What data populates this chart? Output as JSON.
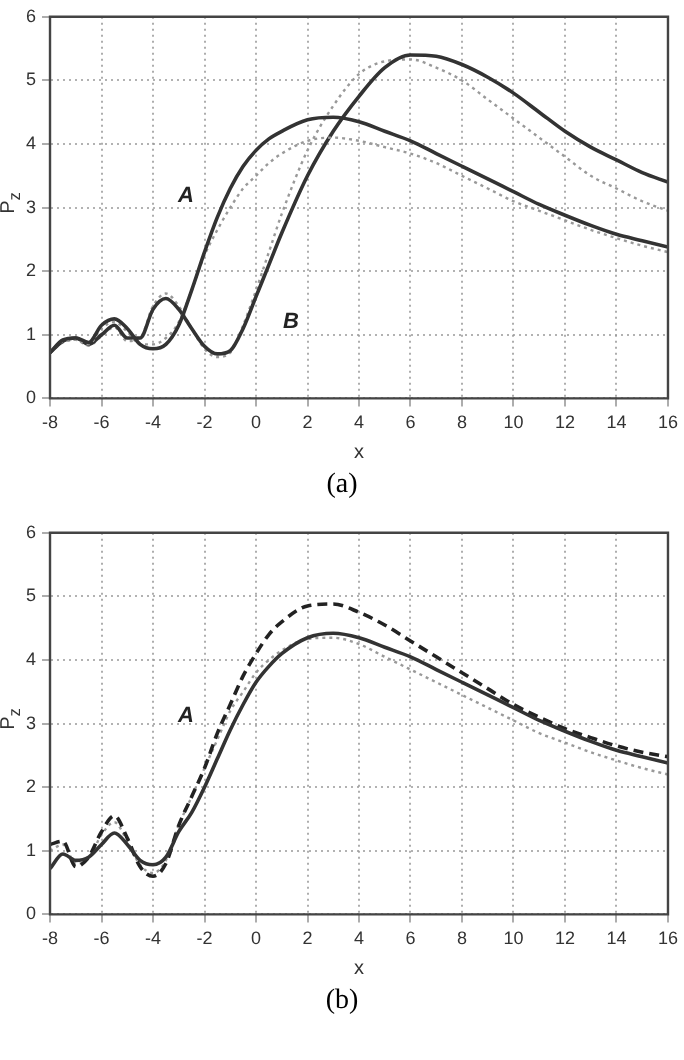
{
  "chart_data": [
    {
      "type": "line",
      "xlabel": "x",
      "ylabel": "P$_{z}$",
      "xlim": [
        -8,
        16
      ],
      "xticks": [
        -8,
        -6,
        -4,
        -2,
        0,
        2,
        4,
        6,
        8,
        10,
        12,
        14,
        16
      ],
      "ylim": [
        0,
        6
      ],
      "yticks": [
        0,
        1,
        2,
        3,
        4,
        5,
        6
      ],
      "grid": true,
      "legend": false,
      "x": [
        -8,
        -7.5,
        -7,
        -6.5,
        -6,
        -5.5,
        -5,
        -4.5,
        -4,
        -3.5,
        -3,
        -2.5,
        -2,
        -1.5,
        -1,
        -0.5,
        0,
        0.5,
        1,
        2,
        3,
        4,
        5,
        6,
        7,
        8,
        9,
        10,
        11,
        12,
        13,
        14,
        15,
        16
      ],
      "series": [
        {
          "color": "#333333",
          "line_style": "solid",
          "values": [
            0.72,
            0.92,
            0.95,
            0.88,
            1.15,
            1.25,
            1.1,
            0.85,
            0.78,
            0.85,
            1.15,
            1.7,
            2.3,
            2.85,
            3.3,
            3.65,
            3.9,
            4.08,
            4.2,
            4.38,
            4.42,
            4.35,
            4.2,
            4.05,
            3.85,
            3.65,
            3.45,
            3.25,
            3.05,
            2.88,
            2.72,
            2.58,
            2.48,
            2.38
          ]
        },
        {
          "color": "#999999",
          "line_style": "dotted",
          "values": [
            0.72,
            0.9,
            0.92,
            0.85,
            1.1,
            1.2,
            1.05,
            0.85,
            0.85,
            0.95,
            1.2,
            1.7,
            2.25,
            2.65,
            3.0,
            3.3,
            3.5,
            3.7,
            3.85,
            4.05,
            4.1,
            4.05,
            3.95,
            3.85,
            3.7,
            3.5,
            3.3,
            3.1,
            2.95,
            2.8,
            2.65,
            2.52,
            2.4,
            2.3
          ]
        },
        {
          "color": "#333333",
          "line_style": "solid",
          "values": [
            0.72,
            0.9,
            0.95,
            0.85,
            1.0,
            1.15,
            0.95,
            0.95,
            1.4,
            1.57,
            1.4,
            1.1,
            0.82,
            0.7,
            0.75,
            1.1,
            1.6,
            2.1,
            2.6,
            3.5,
            4.2,
            4.75,
            5.2,
            5.4,
            5.38,
            5.25,
            5.05,
            4.8,
            4.5,
            4.2,
            3.95,
            3.75,
            3.55,
            3.4
          ]
        },
        {
          "color": "#999999",
          "line_style": "dotted",
          "values": [
            0.72,
            0.88,
            0.92,
            0.83,
            0.98,
            1.12,
            0.9,
            0.95,
            1.45,
            1.65,
            1.45,
            1.1,
            0.78,
            0.65,
            0.72,
            1.15,
            1.7,
            2.3,
            2.9,
            3.9,
            4.6,
            5.1,
            5.3,
            5.33,
            5.2,
            5.0,
            4.7,
            4.4,
            4.1,
            3.8,
            3.5,
            3.3,
            3.1,
            2.95
          ]
        }
      ],
      "annotations": [
        "A",
        "B",
        "(a)"
      ]
    },
    {
      "type": "line",
      "xlabel": "x",
      "ylabel": "P$_{z}$",
      "xlim": [
        -8,
        16
      ],
      "xticks": [
        -8,
        -6,
        -4,
        -2,
        0,
        2,
        4,
        6,
        8,
        10,
        12,
        14,
        16
      ],
      "ylim": [
        0,
        6
      ],
      "yticks": [
        0,
        1,
        2,
        3,
        4,
        5,
        6
      ],
      "grid": true,
      "legend": false,
      "x": [
        -8,
        -7.5,
        -7,
        -6.5,
        -6,
        -5.5,
        -5,
        -4.5,
        -4,
        -3.5,
        -3,
        -2.5,
        -2,
        -1.5,
        -1,
        -0.5,
        0,
        0.5,
        1,
        2,
        3,
        4,
        5,
        6,
        7,
        8,
        9,
        10,
        11,
        12,
        13,
        14,
        15,
        16
      ],
      "series": [
        {
          "color": "#333333",
          "line_style": "solid",
          "values": [
            0.72,
            0.95,
            0.85,
            0.9,
            1.1,
            1.28,
            1.1,
            0.85,
            0.78,
            0.9,
            1.3,
            1.6,
            2.0,
            2.45,
            2.9,
            3.3,
            3.65,
            3.9,
            4.1,
            4.35,
            4.42,
            4.35,
            4.2,
            4.05,
            3.85,
            3.65,
            3.45,
            3.25,
            3.05,
            2.88,
            2.72,
            2.58,
            2.48,
            2.38
          ]
        },
        {
          "color": "#222222",
          "line_style": "dashed",
          "values": [
            1.1,
            1.15,
            0.75,
            0.9,
            1.3,
            1.55,
            1.2,
            0.75,
            0.6,
            0.8,
            1.4,
            1.85,
            2.3,
            2.85,
            3.3,
            3.75,
            4.1,
            4.4,
            4.6,
            4.85,
            4.88,
            4.75,
            4.55,
            4.3,
            4.05,
            3.8,
            3.55,
            3.3,
            3.1,
            2.92,
            2.78,
            2.65,
            2.55,
            2.48
          ]
        },
        {
          "color": "#999999",
          "line_style": "dotted",
          "values": [
            1.0,
            1.1,
            0.8,
            0.88,
            1.25,
            1.45,
            1.15,
            0.78,
            0.65,
            0.85,
            1.4,
            1.85,
            2.3,
            2.75,
            3.2,
            3.5,
            3.8,
            4.0,
            4.15,
            4.33,
            4.35,
            4.25,
            4.05,
            3.85,
            3.65,
            3.45,
            3.25,
            3.05,
            2.85,
            2.7,
            2.55,
            2.42,
            2.3,
            2.2
          ]
        }
      ],
      "annotations": [
        "A",
        "(b)"
      ]
    }
  ]
}
